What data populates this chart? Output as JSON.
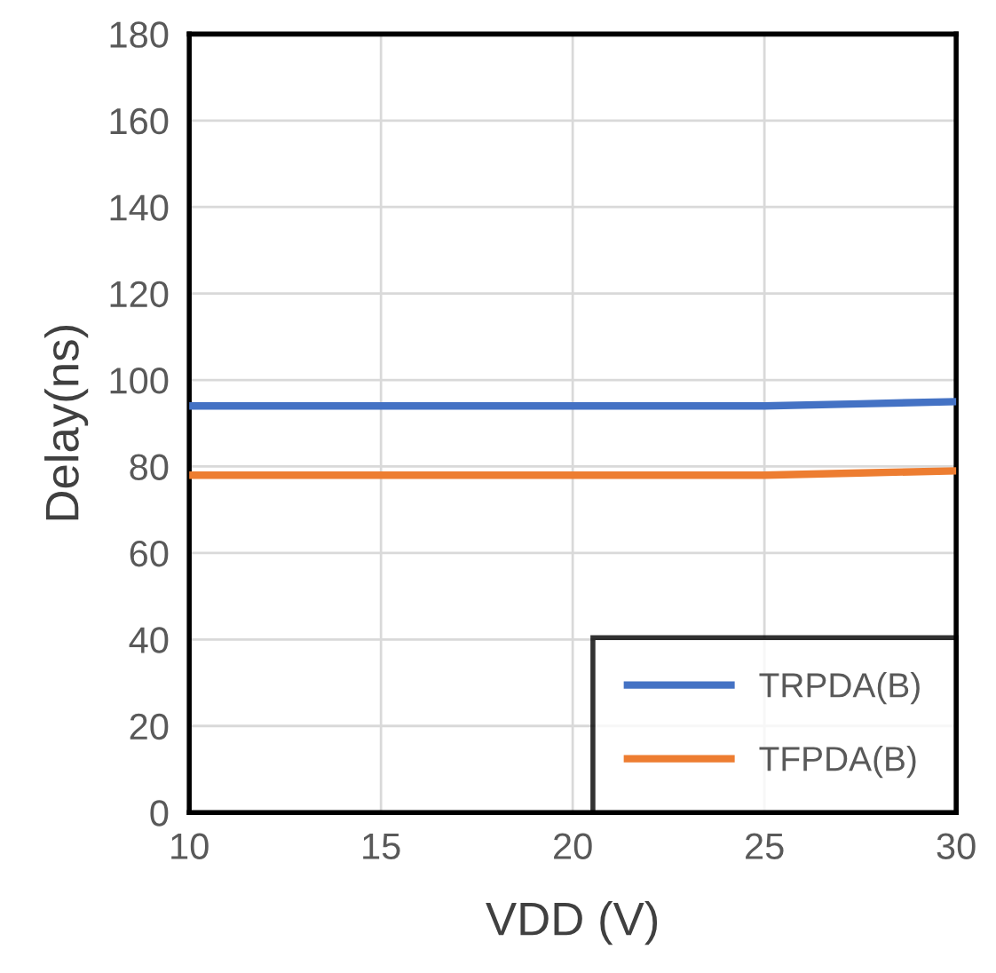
{
  "chart_data": {
    "type": "line",
    "xlabel": "VDD (V)",
    "ylabel": "Delay(ns)",
    "xlim": [
      10,
      30
    ],
    "xticks": [
      10,
      15,
      20,
      25,
      30
    ],
    "ylim": [
      0,
      180
    ],
    "yticks": [
      0,
      20,
      40,
      60,
      80,
      100,
      120,
      140,
      160,
      180
    ],
    "grid": true,
    "legend": "bottom right",
    "marker": "none",
    "line_style": "solid",
    "series": [
      {
        "name": "TRPDA(B)",
        "color": "#4472c4",
        "x": [
          10,
          15,
          20,
          22.5,
          25,
          27.5,
          30
        ],
        "values": [
          94,
          94,
          94,
          94,
          94,
          94.5,
          95
        ]
      },
      {
        "name": "TFPDA(B)",
        "color": "#ed7d31",
        "x": [
          10,
          15,
          20,
          22.5,
          25,
          27.5,
          30
        ],
        "values": [
          78,
          78,
          78,
          78,
          78,
          78.5,
          79
        ]
      }
    ]
  }
}
